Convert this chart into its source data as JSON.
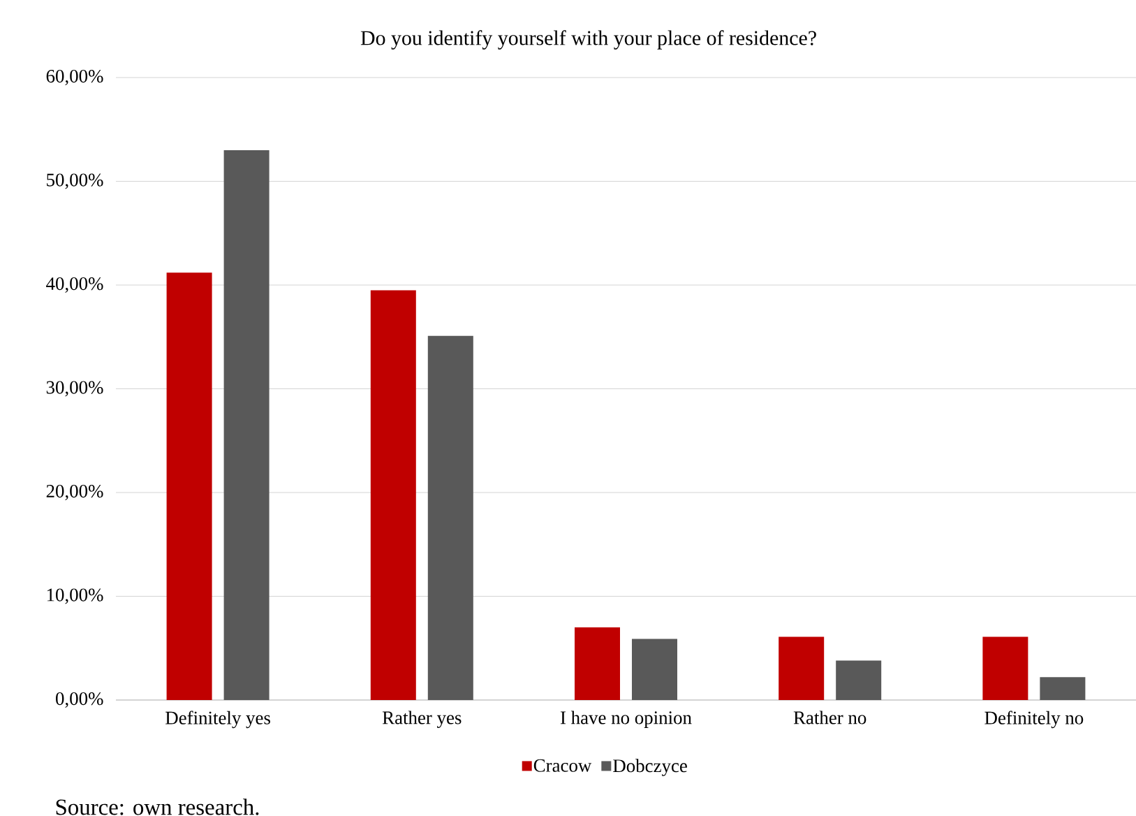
{
  "chart_data": {
    "type": "bar",
    "title": "Do you identify yourself with your place of residence?",
    "categories": [
      "Definitely yes",
      "Rather yes",
      "I have no opinion",
      "Rather no",
      "Definitely no"
    ],
    "series": [
      {
        "name": "Cracow",
        "color": "#c00000",
        "values": [
          41.2,
          39.5,
          7.0,
          6.1,
          6.1
        ]
      },
      {
        "name": "Dobczyce",
        "color": "#595959",
        "values": [
          53.0,
          35.1,
          5.9,
          3.8,
          2.2
        ]
      }
    ],
    "ylim": [
      0,
      60
    ],
    "yticks": [
      {
        "value": 0,
        "label": "0,00%"
      },
      {
        "value": 10,
        "label": "10,00%"
      },
      {
        "value": 20,
        "label": "20,00%"
      },
      {
        "value": 30,
        "label": "30,00%"
      },
      {
        "value": 40,
        "label": "40,00%"
      },
      {
        "value": 50,
        "label": "50,00%"
      },
      {
        "value": 60,
        "label": "60,00%"
      }
    ],
    "grid": "y",
    "legend": "bottom",
    "annotations": [
      "Source: own  research."
    ]
  }
}
